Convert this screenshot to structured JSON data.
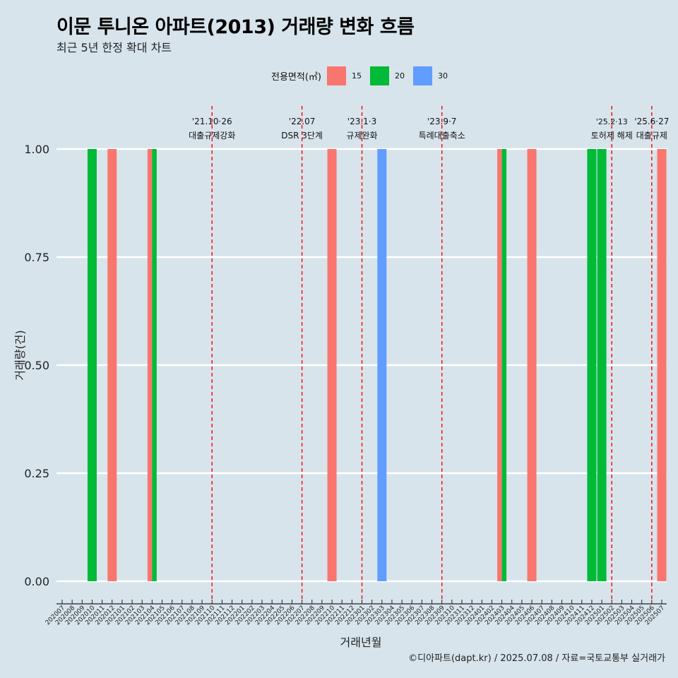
{
  "header": {
    "title": "이문 투니온 아파트(2013) 거래량 변화 흐름",
    "subtitle": "최근 5년 한정 확대 차트"
  },
  "legend": {
    "title": "전용면적(㎡)",
    "items": [
      {
        "label": "15",
        "color": "#f8766d"
      },
      {
        "label": "20",
        "color": "#00ba38"
      },
      {
        "label": "30",
        "color": "#619cff"
      }
    ]
  },
  "caption": "©디아파트(dapt.kr) / 2025.07.08 / 자료=국토교통부 실거래가",
  "chart_data": {
    "type": "bar",
    "xlabel": "거래년월",
    "ylabel": "거래량(건)",
    "ylim": [
      0,
      1
    ],
    "yticks": [
      "0.00",
      "0.25",
      "0.50",
      "0.75",
      "1.00"
    ],
    "categories": [
      "202007",
      "202008",
      "202009",
      "202010",
      "202011",
      "202012",
      "202101",
      "202102",
      "202103",
      "202104",
      "202105",
      "202106",
      "202107",
      "202108",
      "202109",
      "202110",
      "202111",
      "202112",
      "202201",
      "202202",
      "202203",
      "202204",
      "202205",
      "202206",
      "202207",
      "202208",
      "202209",
      "202210",
      "202211",
      "202212",
      "202301",
      "202302",
      "202303",
      "202304",
      "202305",
      "202306",
      "202307",
      "202308",
      "202309",
      "202310",
      "202311",
      "202312",
      "202401",
      "202402",
      "202403",
      "202404",
      "202405",
      "202406",
      "202407",
      "202408",
      "202409",
      "202410",
      "202411",
      "202412",
      "202501",
      "202502",
      "202503",
      "202504",
      "202505",
      "202506",
      "202507"
    ],
    "bars": [
      {
        "category": "202010",
        "area": "20",
        "value": 1
      },
      {
        "category": "202012",
        "area": "15",
        "value": 1
      },
      {
        "category": "202104",
        "area": "15",
        "value": 1
      },
      {
        "category": "202104",
        "area": "20",
        "value": 1
      },
      {
        "category": "202210",
        "area": "15",
        "value": 1
      },
      {
        "category": "202303",
        "area": "30",
        "value": 1
      },
      {
        "category": "202403",
        "area": "15",
        "value": 1
      },
      {
        "category": "202403",
        "area": "20",
        "value": 1
      },
      {
        "category": "202406",
        "area": "15",
        "value": 1
      },
      {
        "category": "202412",
        "area": "20",
        "value": 1
      },
      {
        "category": "202501",
        "area": "20",
        "value": 1
      },
      {
        "category": "202507",
        "area": "15",
        "value": 1
      }
    ],
    "annotations": [
      {
        "x": "202110",
        "date": "'21.10·26",
        "text": "대출규제강화"
      },
      {
        "x": "202207",
        "date": "'22.07",
        "text": "DSR 3단계"
      },
      {
        "x": "202301",
        "date": "'23.1·3",
        "text": "규제완화"
      },
      {
        "x": "202309",
        "date": "'23.9·7",
        "text": "특례대출축소"
      },
      {
        "x": "202502",
        "date": "'25.2·13",
        "text": "토허제 해제"
      },
      {
        "x": "202506",
        "date": "'25.6·27",
        "text": "대출규제"
      }
    ]
  }
}
